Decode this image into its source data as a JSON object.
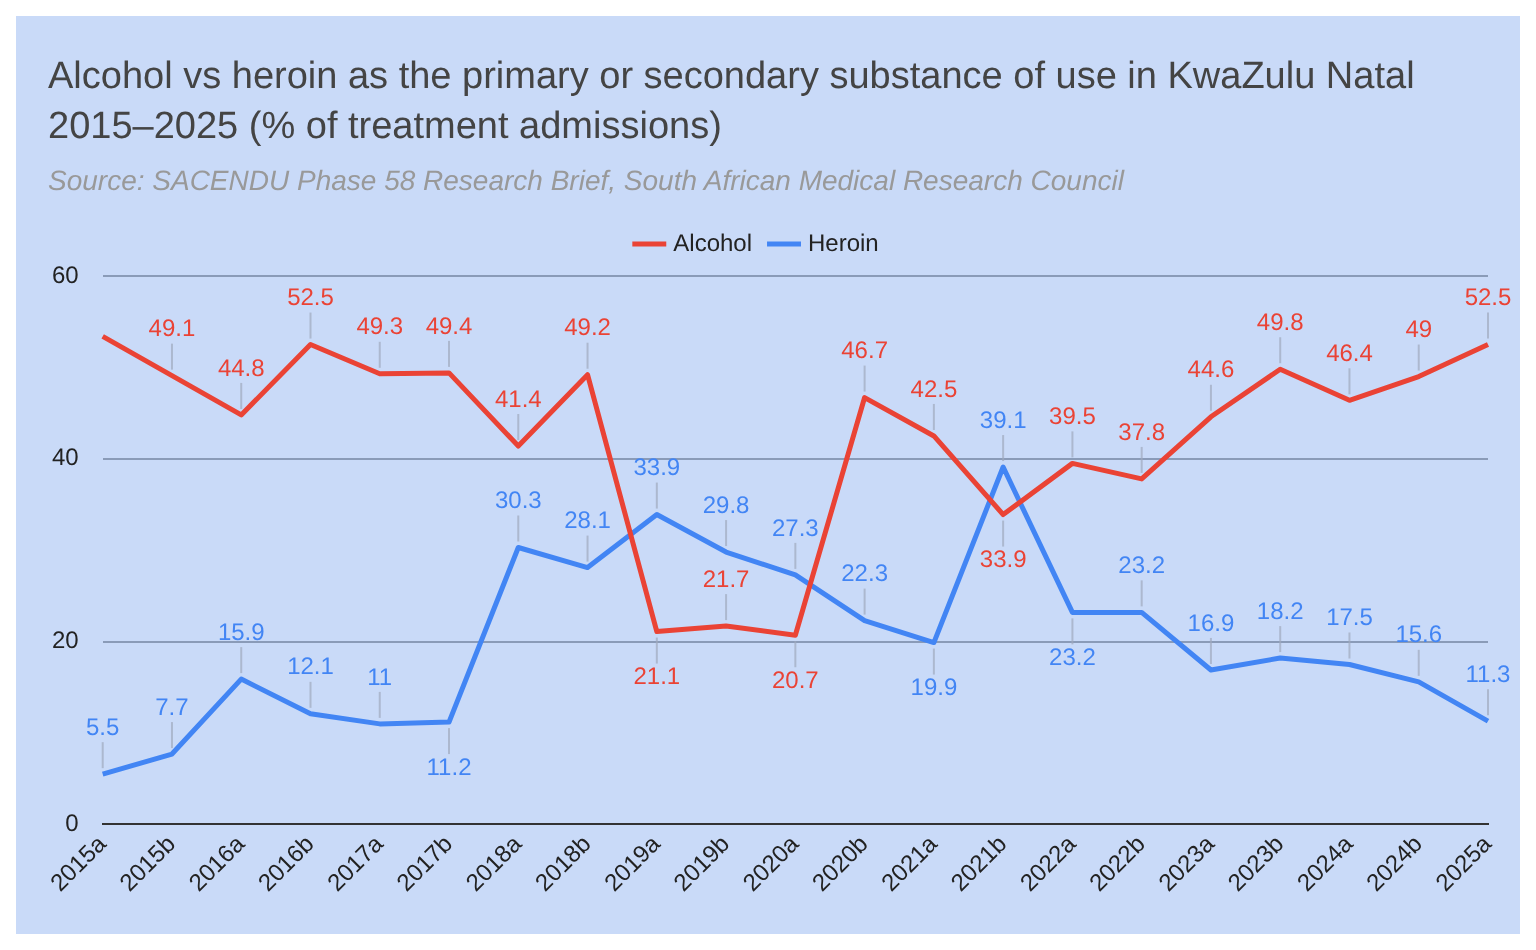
{
  "chart_data": {
    "type": "line",
    "title": "Alcohol vs heroin as the primary or secondary substance of use in KwaZulu Natal 2015–2025 (% of treatment admissions)",
    "annotations": [
      "Source: SACENDU Phase 58 Research Brief, South African Medical Research Council"
    ],
    "categories": [
      "2015a",
      "2015b",
      "2016a",
      "2016b",
      "2017a",
      "2017b",
      "2018a",
      "2018b",
      "2019a",
      "2019b",
      "2020a",
      "2020b",
      "2021a",
      "2021b",
      "2022a",
      "2022b",
      "2023a",
      "2023b",
      "2024a",
      "2024b",
      "2025a"
    ],
    "series": [
      {
        "name": "Alcohol",
        "color": "#ea4335",
        "values": [
          53.4,
          49.1,
          44.8,
          52.5,
          49.3,
          49.4,
          41.4,
          49.2,
          21.1,
          21.7,
          20.7,
          46.7,
          42.5,
          33.9,
          39.5,
          37.8,
          44.6,
          49.8,
          46.4,
          49,
          52.5
        ],
        "value_labels": [
          null,
          "49.1",
          "44.8",
          "52.5",
          "49.3",
          "49.4",
          "41.4",
          "49.2",
          "21.1",
          "21.7",
          "20.7",
          "46.7",
          "42.5",
          "33.9",
          "39.5",
          "37.8",
          "44.6",
          "49.8",
          "46.4",
          "49",
          "52.5"
        ]
      },
      {
        "name": "Heroin",
        "color": "#4285f4",
        "values": [
          5.5,
          7.7,
          15.9,
          12.1,
          11,
          11.2,
          30.3,
          28.1,
          33.9,
          29.8,
          27.3,
          22.3,
          19.9,
          39.1,
          23.2,
          23.2,
          16.9,
          18.2,
          17.5,
          15.6,
          11.3
        ],
        "value_labels": [
          "5.5",
          "7.7",
          "15.9",
          "12.1",
          "11",
          "11.2",
          "30.3",
          "28.1",
          "33.9",
          "29.8",
          "27.3",
          "22.3",
          "19.9",
          "39.1",
          "23.2",
          "23.2",
          "16.9",
          "18.2",
          "17.5",
          "15.6",
          "11.3"
        ]
      }
    ],
    "ylim": [
      0,
      60
    ],
    "yticks": [
      0,
      20,
      40,
      60
    ],
    "grid": "y",
    "legend": "top",
    "marker": "none",
    "line_style": "solid"
  }
}
